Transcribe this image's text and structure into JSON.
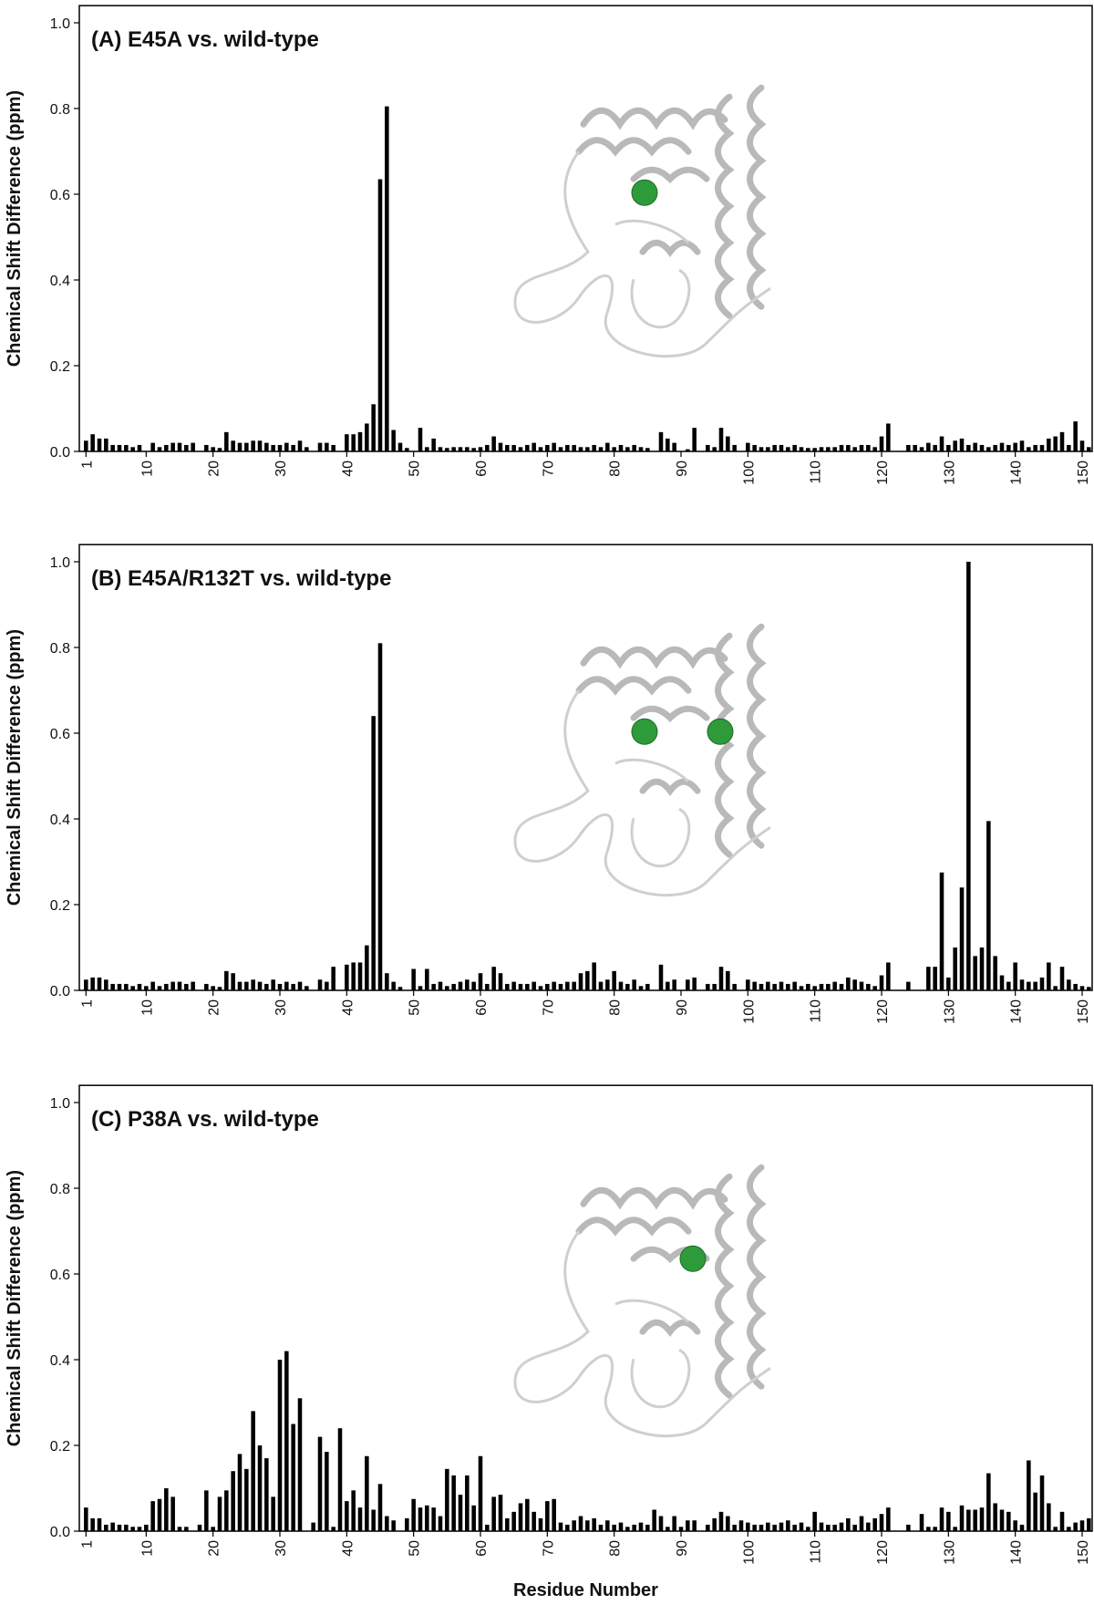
{
  "chart_data": [
    {
      "type": "bar",
      "title": "(A) E45A vs. wild-type",
      "y_label": "Chemical Shift Difference (ppm)",
      "color": "#000000",
      "x": [
        1,
        2,
        3,
        4,
        5,
        6,
        7,
        8,
        9,
        10,
        11,
        12,
        13,
        14,
        15,
        16,
        17,
        18,
        19,
        20,
        21,
        22,
        23,
        24,
        25,
        26,
        27,
        28,
        29,
        30,
        31,
        32,
        33,
        34,
        35,
        36,
        37,
        38,
        39,
        40,
        41,
        42,
        43,
        44,
        45,
        46,
        47,
        48,
        49,
        50,
        51,
        52,
        53,
        54,
        55,
        56,
        57,
        58,
        59,
        60,
        61,
        62,
        63,
        64,
        65,
        66,
        67,
        68,
        69,
        70,
        71,
        72,
        73,
        74,
        75,
        76,
        77,
        78,
        79,
        80,
        81,
        82,
        83,
        84,
        85,
        86,
        87,
        88,
        89,
        90,
        91,
        92,
        93,
        94,
        95,
        96,
        97,
        98,
        99,
        100,
        101,
        102,
        103,
        104,
        105,
        106,
        107,
        108,
        109,
        110,
        111,
        112,
        113,
        114,
        115,
        116,
        117,
        118,
        119,
        120,
        121,
        122,
        123,
        124,
        125,
        126,
        127,
        128,
        129,
        130,
        131,
        132,
        133,
        134,
        135,
        136,
        137,
        138,
        139,
        140,
        141,
        142,
        143,
        144,
        145,
        146,
        147,
        148,
        149,
        150,
        151
      ],
      "values": [
        0.025,
        0.04,
        0.03,
        0.03,
        0.015,
        0.015,
        0.015,
        0.01,
        0.015,
        null,
        0.02,
        0.01,
        0.015,
        0.02,
        0.02,
        0.015,
        0.02,
        null,
        0.015,
        0.01,
        0.008,
        0.045,
        0.025,
        0.02,
        0.02,
        0.025,
        0.025,
        0.02,
        0.015,
        0.015,
        0.02,
        0.015,
        0.025,
        0.01,
        null,
        0.02,
        0.02,
        0.015,
        null,
        0.04,
        0.04,
        0.045,
        0.065,
        0.11,
        0.635,
        0.805,
        0.05,
        0.02,
        0.008,
        null,
        0.055,
        0.01,
        0.03,
        0.01,
        0.008,
        0.01,
        0.01,
        0.01,
        0.008,
        0.01,
        0.015,
        0.035,
        0.02,
        0.015,
        0.015,
        0.01,
        0.015,
        0.02,
        0.01,
        0.015,
        0.02,
        0.01,
        0.015,
        0.015,
        0.01,
        0.01,
        0.015,
        0.01,
        0.02,
        0.01,
        0.015,
        0.01,
        0.015,
        0.01,
        0.008,
        null,
        0.045,
        0.03,
        0.02,
        null,
        0.005,
        0.055,
        null,
        0.015,
        0.01,
        0.055,
        0.035,
        0.015,
        null,
        0.02,
        0.015,
        0.01,
        0.01,
        0.015,
        0.015,
        0.01,
        0.015,
        0.01,
        0.008,
        0.008,
        0.01,
        0.01,
        0.01,
        0.015,
        0.015,
        0.01,
        0.015,
        0.015,
        0.01,
        0.035,
        0.065,
        null,
        null,
        0.015,
        0.015,
        0.01,
        0.02,
        0.015,
        0.035,
        0.015,
        0.025,
        0.03,
        0.015,
        0.02,
        0.015,
        0.01,
        0.015,
        0.02,
        0.015,
        0.02,
        0.025,
        0.01,
        0.015,
        0.015,
        0.03,
        0.035,
        0.045,
        0.015,
        0.07,
        0.025,
        0.01
      ],
      "xlim": [
        0,
        151.5
      ],
      "xticks": [
        1,
        10,
        20,
        30,
        40,
        50,
        60,
        70,
        80,
        90,
        100,
        110,
        120,
        130,
        140,
        150
      ],
      "ylim": [
        0,
        1.04
      ],
      "yticks": [
        {
          "value": 0,
          "label": "0.0"
        },
        0.2,
        0.4,
        0.6,
        0.8,
        {
          "value": 1,
          "label": "1.0"
        }
      ]
    },
    {
      "type": "bar",
      "title": "(B) E45A/R132T vs. wild-type",
      "y_label": "Chemical Shift Difference (ppm)",
      "color": "#000000",
      "x": [
        1,
        2,
        3,
        4,
        5,
        6,
        7,
        8,
        9,
        10,
        11,
        12,
        13,
        14,
        15,
        16,
        17,
        18,
        19,
        20,
        21,
        22,
        23,
        24,
        25,
        26,
        27,
        28,
        29,
        30,
        31,
        32,
        33,
        34,
        35,
        36,
        37,
        38,
        39,
        40,
        41,
        42,
        43,
        44,
        45,
        46,
        47,
        48,
        49,
        50,
        51,
        52,
        53,
        54,
        55,
        56,
        57,
        58,
        59,
        60,
        61,
        62,
        63,
        64,
        65,
        66,
        67,
        68,
        69,
        70,
        71,
        72,
        73,
        74,
        75,
        76,
        77,
        78,
        79,
        80,
        81,
        82,
        83,
        84,
        85,
        86,
        87,
        88,
        89,
        90,
        91,
        92,
        93,
        94,
        95,
        96,
        97,
        98,
        99,
        100,
        101,
        102,
        103,
        104,
        105,
        106,
        107,
        108,
        109,
        110,
        111,
        112,
        113,
        114,
        115,
        116,
        117,
        118,
        119,
        120,
        121,
        122,
        123,
        124,
        125,
        126,
        127,
        128,
        129,
        130,
        131,
        132,
        133,
        134,
        135,
        136,
        137,
        138,
        139,
        140,
        141,
        142,
        143,
        144,
        145,
        146,
        147,
        148,
        149,
        150,
        151
      ],
      "values": [
        0.025,
        0.03,
        0.03,
        0.025,
        0.015,
        0.015,
        0.015,
        0.01,
        0.015,
        0.01,
        0.02,
        0.01,
        0.015,
        0.02,
        0.02,
        0.015,
        0.02,
        null,
        0.015,
        0.01,
        0.008,
        0.045,
        0.04,
        0.02,
        0.02,
        0.025,
        0.02,
        0.015,
        0.025,
        0.015,
        0.02,
        0.015,
        0.02,
        0.01,
        null,
        0.025,
        0.02,
        0.055,
        null,
        0.06,
        0.065,
        0.065,
        0.105,
        0.64,
        0.81,
        0.04,
        0.02,
        0.008,
        null,
        0.05,
        0.01,
        0.05,
        0.015,
        0.02,
        0.01,
        0.015,
        0.02,
        0.025,
        0.02,
        0.04,
        0.015,
        0.055,
        0.04,
        0.015,
        0.02,
        0.015,
        0.015,
        0.02,
        0.01,
        0.015,
        0.02,
        0.015,
        0.02,
        0.02,
        0.04,
        0.045,
        0.065,
        0.02,
        0.025,
        0.045,
        0.02,
        0.015,
        0.025,
        0.01,
        0.015,
        null,
        0.06,
        0.02,
        0.025,
        null,
        0.025,
        0.03,
        null,
        0.015,
        0.015,
        0.055,
        0.045,
        0.015,
        null,
        0.025,
        0.02,
        0.015,
        0.02,
        0.015,
        0.02,
        0.015,
        0.02,
        0.01,
        0.015,
        0.01,
        0.015,
        0.015,
        0.02,
        0.015,
        0.03,
        0.025,
        0.02,
        0.015,
        0.01,
        0.035,
        0.065,
        null,
        null,
        0.02,
        null,
        null,
        0.055,
        0.055,
        0.275,
        0.03,
        0.1,
        0.24,
        1.0,
        0.08,
        0.1,
        0.395,
        0.08,
        0.035,
        0.02,
        0.065,
        0.025,
        0.02,
        0.02,
        0.03,
        0.065,
        0.01,
        0.055,
        0.025,
        0.015,
        0.01,
        0.008
      ],
      "xlim": [
        0,
        151.5
      ],
      "xticks": [
        1,
        10,
        20,
        30,
        40,
        50,
        60,
        70,
        80,
        90,
        100,
        110,
        120,
        130,
        140,
        150
      ],
      "ylim": [
        0,
        1.04
      ],
      "yticks": [
        {
          "value": 0,
          "label": "0.0"
        },
        0.2,
        0.4,
        0.6,
        0.8,
        {
          "value": 1,
          "label": "1.0"
        }
      ]
    },
    {
      "type": "bar",
      "title": "(C) P38A vs. wild-type",
      "y_label": "Chemical Shift Difference (ppm)",
      "x_label": "Residue Number",
      "color": "#000000",
      "x": [
        1,
        2,
        3,
        4,
        5,
        6,
        7,
        8,
        9,
        10,
        11,
        12,
        13,
        14,
        15,
        16,
        17,
        18,
        19,
        20,
        21,
        22,
        23,
        24,
        25,
        26,
        27,
        28,
        29,
        30,
        31,
        32,
        33,
        34,
        35,
        36,
        37,
        38,
        39,
        40,
        41,
        42,
        43,
        44,
        45,
        46,
        47,
        48,
        49,
        50,
        51,
        52,
        53,
        54,
        55,
        56,
        57,
        58,
        59,
        60,
        61,
        62,
        63,
        64,
        65,
        66,
        67,
        68,
        69,
        70,
        71,
        72,
        73,
        74,
        75,
        76,
        77,
        78,
        79,
        80,
        81,
        82,
        83,
        84,
        85,
        86,
        87,
        88,
        89,
        90,
        91,
        92,
        93,
        94,
        95,
        96,
        97,
        98,
        99,
        100,
        101,
        102,
        103,
        104,
        105,
        106,
        107,
        108,
        109,
        110,
        111,
        112,
        113,
        114,
        115,
        116,
        117,
        118,
        119,
        120,
        121,
        122,
        123,
        124,
        125,
        126,
        127,
        128,
        129,
        130,
        131,
        132,
        133,
        134,
        135,
        136,
        137,
        138,
        139,
        140,
        141,
        142,
        143,
        144,
        145,
        146,
        147,
        148,
        149,
        150,
        151
      ],
      "values": [
        0.055,
        0.03,
        0.03,
        0.015,
        0.02,
        0.015,
        0.015,
        0.01,
        0.01,
        0.015,
        0.07,
        0.075,
        0.1,
        0.08,
        0.01,
        0.01,
        null,
        0.015,
        0.095,
        0.01,
        0.08,
        0.095,
        0.14,
        0.18,
        0.145,
        0.28,
        0.2,
        0.17,
        0.08,
        0.4,
        0.42,
        0.25,
        0.31,
        null,
        0.02,
        0.22,
        0.185,
        0.01,
        0.24,
        0.07,
        0.095,
        0.055,
        0.175,
        0.05,
        0.11,
        0.035,
        0.025,
        null,
        0.03,
        0.075,
        0.055,
        0.06,
        0.055,
        0.035,
        0.145,
        0.13,
        0.085,
        0.13,
        0.06,
        0.175,
        0.015,
        0.08,
        0.085,
        0.03,
        0.045,
        0.065,
        0.075,
        0.045,
        0.03,
        0.07,
        0.075,
        0.02,
        0.015,
        0.025,
        0.035,
        0.025,
        0.03,
        0.015,
        0.025,
        0.015,
        0.02,
        0.01,
        0.015,
        0.02,
        0.015,
        0.05,
        0.035,
        0.01,
        0.035,
        0.01,
        0.025,
        0.025,
        null,
        0.015,
        0.03,
        0.045,
        0.035,
        0.015,
        0.025,
        0.02,
        0.015,
        0.015,
        0.02,
        0.015,
        0.02,
        0.025,
        0.015,
        0.02,
        0.01,
        0.045,
        0.02,
        0.015,
        0.015,
        0.02,
        0.03,
        0.015,
        0.035,
        0.02,
        0.03,
        0.04,
        0.055,
        null,
        null,
        0.015,
        null,
        0.04,
        0.01,
        0.01,
        0.055,
        0.045,
        0.01,
        0.06,
        0.05,
        0.05,
        0.055,
        0.135,
        0.065,
        0.05,
        0.045,
        0.025,
        0.015,
        0.165,
        0.09,
        0.13,
        0.065,
        0.01,
        0.045,
        0.01,
        0.02,
        0.025,
        0.03
      ],
      "xlim": [
        0,
        151.5
      ],
      "xticks": [
        1,
        10,
        20,
        30,
        40,
        50,
        60,
        70,
        80,
        90,
        100,
        110,
        120,
        130,
        140,
        150
      ],
      "ylim": [
        0,
        1.04
      ],
      "yticks": [
        {
          "value": 0,
          "label": "0.0"
        },
        0.2,
        0.4,
        0.6,
        0.8,
        {
          "value": 1,
          "label": "1.0"
        }
      ]
    }
  ]
}
